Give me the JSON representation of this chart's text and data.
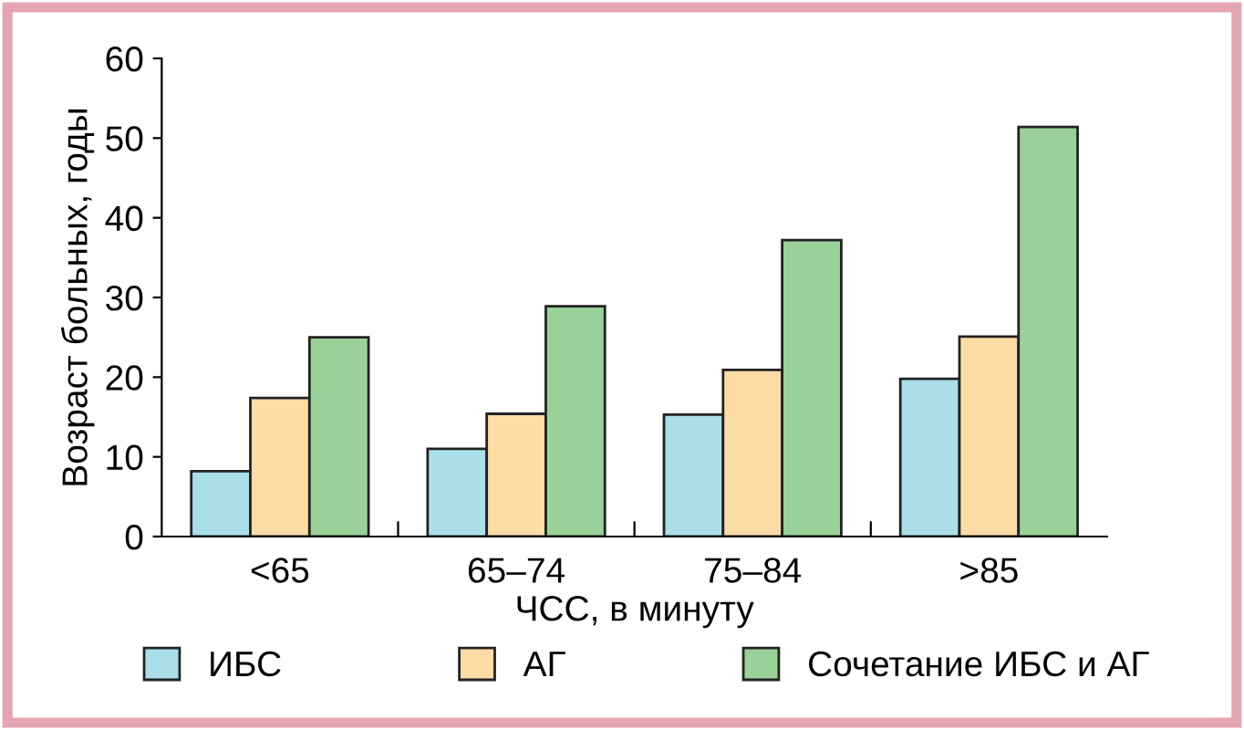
{
  "chart_data": {
    "type": "bar",
    "xlabel": "ЧСС, в минуту",
    "ylabel": "Возраст больных, годы",
    "categories": [
      "<65",
      "65–74",
      "75–84",
      ">85"
    ],
    "series": [
      {
        "name": "ИБС",
        "color": "#aadfe9",
        "values": [
          8.2,
          11.0,
          15.3,
          19.8
        ]
      },
      {
        "name": "АГ",
        "color": "#fddca6",
        "values": [
          17.4,
          15.4,
          20.9,
          25.1
        ]
      },
      {
        "name": "Сочетание ИБС и АГ",
        "color": "#99d199",
        "values": [
          25.0,
          28.9,
          37.2,
          51.4
        ]
      }
    ],
    "ylim": [
      0,
      60
    ],
    "yticks": [
      0,
      10,
      20,
      30,
      40,
      50,
      60
    ],
    "grid": false,
    "legend": "bottom"
  }
}
